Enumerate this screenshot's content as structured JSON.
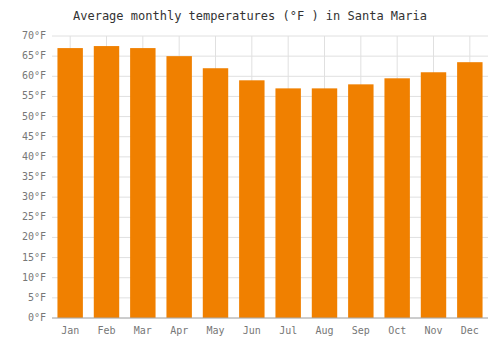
{
  "chart_data": {
    "type": "bar",
    "title": "Average monthly temperatures (°F ) in Santa Maria",
    "categories": [
      "Jan",
      "Feb",
      "Mar",
      "Apr",
      "May",
      "Jun",
      "Jul",
      "Aug",
      "Sep",
      "Oct",
      "Nov",
      "Dec"
    ],
    "values": [
      67.0,
      67.5,
      67.0,
      65.0,
      62.0,
      59.0,
      57.0,
      57.0,
      58.0,
      59.5,
      61.0,
      63.5
    ],
    "color": "#F08000",
    "ylim": [
      0,
      70
    ],
    "yticks": [
      {
        "value": 0,
        "label": "0°F"
      },
      {
        "value": 5,
        "label": "5°F"
      },
      {
        "value": 10,
        "label": "10°F"
      },
      {
        "value": 15,
        "label": "15°F"
      },
      {
        "value": 20,
        "label": "20°F"
      },
      {
        "value": 25,
        "label": "25°F"
      },
      {
        "value": 30,
        "label": "30°F"
      },
      {
        "value": 35,
        "label": "35°F"
      },
      {
        "value": 40,
        "label": "40°F"
      },
      {
        "value": 45,
        "label": "45°F"
      },
      {
        "value": 50,
        "label": "50°F"
      },
      {
        "value": 55,
        "label": "55°F"
      },
      {
        "value": 60,
        "label": "60°F"
      },
      {
        "value": 65,
        "label": "65°F"
      },
      {
        "value": 70,
        "label": "70°F"
      }
    ],
    "grid": true
  }
}
